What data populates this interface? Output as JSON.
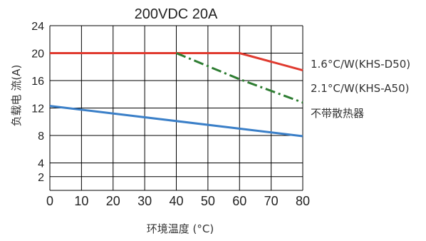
{
  "chart_data": {
    "type": "line",
    "title": "200VDC 20A",
    "xlabel": "环境温度 (°C)",
    "ylabel": "负载电 流(A)",
    "x_ticks": [
      0,
      10,
      20,
      30,
      40,
      50,
      60,
      70,
      80
    ],
    "y_ticks": [
      2,
      4,
      8,
      12,
      16,
      20,
      24
    ],
    "xlim": [
      0,
      80
    ],
    "ylim": [
      0,
      24
    ],
    "grid": true,
    "series": [
      {
        "name": "1.6°C/W(KHS-D50)",
        "color": "#e03a2f",
        "style": "solid",
        "x": [
          0,
          40,
          60,
          80
        ],
        "y": [
          20,
          20,
          20,
          17.5
        ]
      },
      {
        "name": "2.1°C/W(KHS-A50)",
        "color": "#2e7d32",
        "style": "dashdot",
        "x": [
          40,
          60,
          80
        ],
        "y": [
          20,
          16.2,
          12.8
        ]
      },
      {
        "name": "不带散热器",
        "color": "#3a7fc8",
        "style": "solid",
        "x": [
          0,
          80
        ],
        "y": [
          12.3,
          7.9
        ]
      }
    ]
  }
}
